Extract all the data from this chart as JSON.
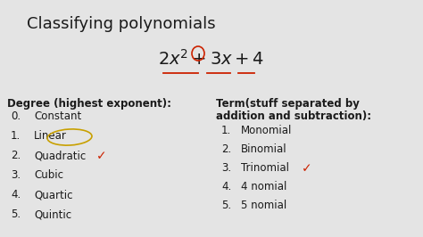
{
  "title": "Classifying polynomials",
  "background_color": "#e4e4e4",
  "title_fontsize": 13,
  "degree_header": "Degree (highest exponent):",
  "degree_items": [
    [
      "0.",
      "Constant"
    ],
    [
      "1.",
      "Linear"
    ],
    [
      "2.",
      "Quadratic"
    ],
    [
      "3.",
      "Cubic"
    ],
    [
      "4.",
      "Quartic"
    ],
    [
      "5.",
      "Quintic"
    ]
  ],
  "term_header1": "Term(stuff separated by",
  "term_header2": "addition and subtraction):",
  "term_items": [
    [
      "1.",
      "Monomial"
    ],
    [
      "2.",
      "Binomial"
    ],
    [
      "3.",
      "Trinomial"
    ],
    [
      "4.",
      "4 nomial"
    ],
    [
      "5.",
      "5 nomial"
    ]
  ],
  "text_color": "#1a1a1a",
  "check_color": "#cc2200",
  "circle_color": "#cc2200",
  "underline_color": "#cc2200",
  "linear_circle_color": "#c8a000"
}
